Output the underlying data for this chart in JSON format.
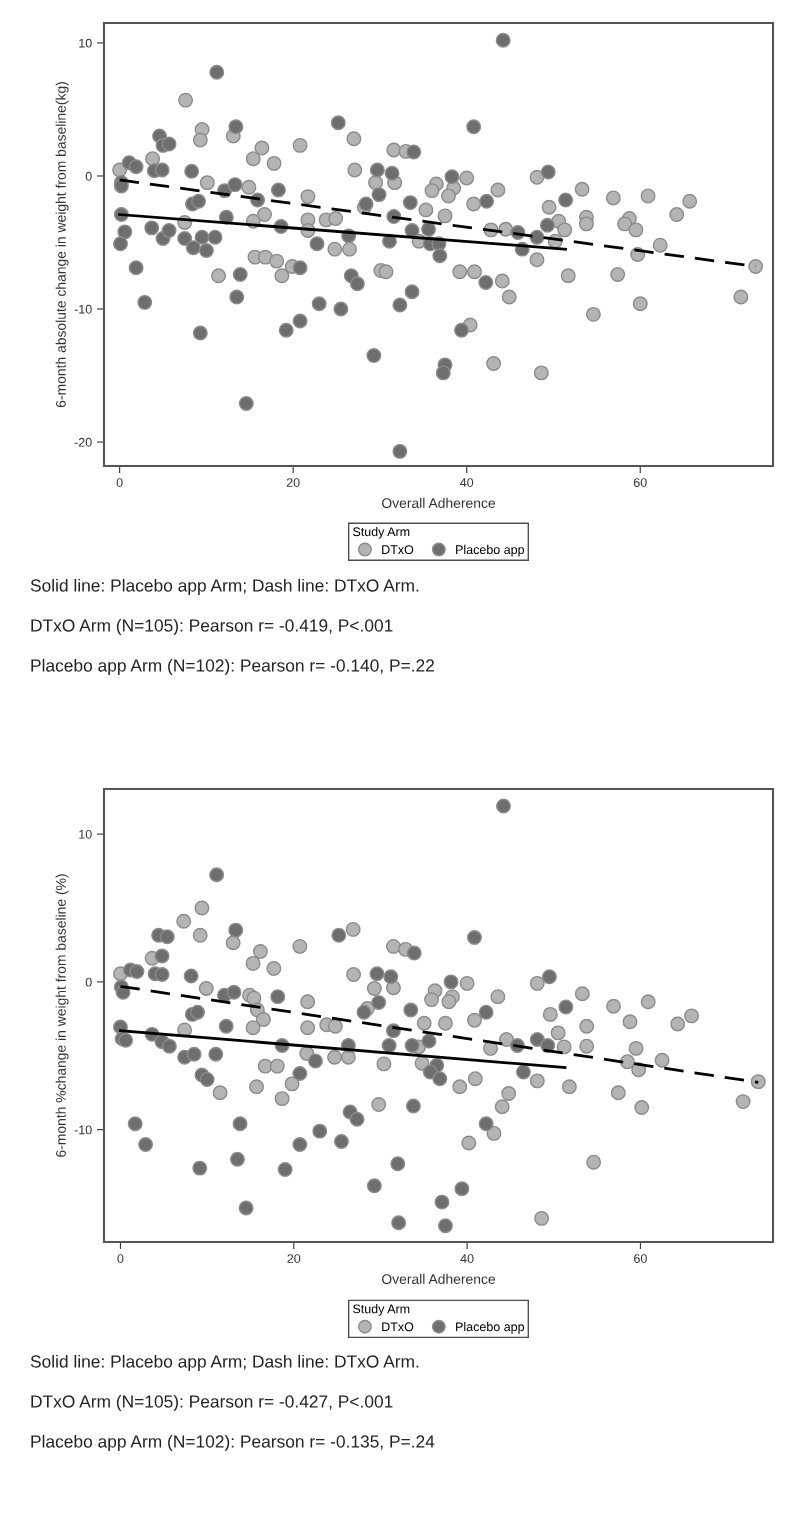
{
  "chart_data": [
    {
      "type": "scatter",
      "xlabel": "Overall Adherence",
      "ylabel": "6-month absolute change in weight from baseline(kg)",
      "legend_title": "Study Arm",
      "legend": "bottom",
      "grid": false,
      "xlim": [
        -1.8,
        75.3
      ],
      "xticks": [
        0,
        20,
        40,
        60
      ],
      "ylim": [
        -21.8,
        11.5
      ],
      "yticks": [
        -20,
        -10,
        0,
        10
      ],
      "series": [
        {
          "name": "DTxO",
          "marker": "circle",
          "color": "#b4b4b4",
          "x": [
            0,
            3.8,
            7.6,
            7.5,
            9.5,
            9.3,
            10.1,
            11.4,
            13.1,
            14.9,
            15.4,
            16.4,
            15.4,
            16.7,
            15.6,
            16.8,
            18.1,
            18.7,
            17.8,
            19.9,
            20.8,
            21.7,
            21.7,
            21.7,
            23.8,
            24.9,
            24.8,
            26.5,
            27.0,
            27.1,
            28.2,
            29.5,
            30.1,
            30.7,
            31.7,
            31.6,
            33.0,
            40.0,
            36.5,
            36.0,
            38.5,
            37.9,
            43.6,
            35.3,
            37.5,
            40.8,
            48.1,
            49.5,
            53.3,
            53.8,
            53.8,
            56.9,
            60.9,
            65.7,
            64.2,
            58.75,
            58.2,
            59.5,
            34.5,
            42.8,
            44.5,
            50.6,
            51.3,
            50.2,
            48.1,
            59.7,
            62.3,
            73.3,
            71.6,
            60.0,
            54.6,
            51.7,
            57.4,
            39.2,
            40.9,
            44.1,
            44.9,
            40.4,
            43.1,
            48.6
          ],
          "values": [
            0.45,
            1.3,
            5.7,
            -3.5,
            3.5,
            2.7,
            -0.5,
            -7.5,
            3.0,
            -0.85,
            1.3,
            2.1,
            -3.4,
            -2.9,
            -6.1,
            -6.1,
            -6.4,
            -7.5,
            0.95,
            -6.8,
            2.3,
            -1.55,
            -3.3,
            -4.1,
            -3.3,
            -3.2,
            -5.5,
            -5.5,
            2.8,
            0.45,
            -2.35,
            -0.5,
            -7.1,
            -7.2,
            -0.5,
            1.95,
            1.85,
            -0.15,
            -0.6,
            -1.1,
            -0.9,
            -1.5,
            -1.05,
            -2.55,
            -3.0,
            -2.1,
            -0.1,
            -2.35,
            -1.0,
            -3.1,
            -3.6,
            -1.65,
            -1.5,
            -1.9,
            -2.9,
            -3.2,
            -3.6,
            -4.05,
            -4.9,
            -4.05,
            -4.0,
            -3.4,
            -4.05,
            -4.9,
            -6.3,
            -5.9,
            -5.2,
            -6.8,
            -9.1,
            -9.6,
            -10.4,
            -7.5,
            -7.4,
            -7.2,
            -7.2,
            -7.9,
            -9.1,
            -11.2,
            -14.1,
            -14.8
          ]
        },
        {
          "name": "Placebo app",
          "marker": "circle",
          "color": "#6e6e6e",
          "x": [
            0.2,
            0.2,
            0.2,
            0.6,
            0.1,
            1.1,
            1.9,
            1.9,
            2.9,
            4.6,
            5.0,
            5.7,
            4.0,
            4.9,
            3.7,
            5.0,
            5.7,
            7.5,
            8.3,
            8.4,
            9.1,
            8.5,
            9.5,
            10.0,
            11.0,
            9.3,
            11.2,
            12.1,
            12.3,
            13.4,
            13.3,
            13.5,
            13.9,
            14.6,
            15.9,
            18.3,
            18.6,
            20.8,
            19.2,
            20.8,
            22.75,
            23.0,
            25.2,
            25.5,
            26.4,
            26.7,
            27.4,
            28.4,
            29.7,
            29.9,
            29.3,
            31.4,
            31.6,
            31.1,
            33.9,
            32.3,
            32.3,
            33.5,
            33.7,
            33.7,
            44.2,
            40.8,
            38.3,
            42.3,
            49.4,
            51.4,
            35.6,
            35.8,
            36.8,
            36.9,
            45.9,
            49.3,
            48.1,
            46.4,
            42.2,
            39.4,
            37.5,
            37.3
          ],
          "values": [
            -0.5,
            -0.75,
            -2.9,
            -4.2,
            -5.1,
            1.0,
            0.7,
            -6.9,
            -9.5,
            3.0,
            2.3,
            2.4,
            0.4,
            0.45,
            -3.9,
            -4.7,
            -4.1,
            -4.7,
            0.35,
            -2.1,
            -1.9,
            -5.4,
            -4.6,
            -5.6,
            -4.6,
            -11.8,
            7.8,
            -1.1,
            -3.1,
            3.7,
            -0.65,
            -9.1,
            -7.4,
            -17.1,
            -1.8,
            -1.05,
            -3.8,
            -6.9,
            -11.6,
            -10.9,
            -5.1,
            -9.6,
            4.0,
            -10.0,
            -4.5,
            -7.5,
            -8.1,
            -2.1,
            0.45,
            -1.4,
            -13.5,
            0.2,
            -3.05,
            -4.9,
            1.8,
            -9.7,
            -20.7,
            -2.0,
            -4.1,
            -8.7,
            10.2,
            3.7,
            -0.05,
            -1.9,
            0.3,
            -1.8,
            -4.0,
            -5.1,
            -5.1,
            -6.0,
            -4.25,
            -3.7,
            -4.6,
            -5.5,
            -8.0,
            -11.6,
            -14.2,
            -14.8
          ]
        },
        {
          "type": "line",
          "line_style": "dashed",
          "color": "#000000",
          "x": [
            0,
            73.3
          ],
          "values": [
            -0.3,
            -6.8
          ]
        },
        {
          "type": "line",
          "line_style": "solid",
          "color": "#000000",
          "x": [
            0,
            51.4
          ],
          "values": [
            -2.9,
            -5.5
          ]
        }
      ],
      "annotations": [
        "Solid line: Placebo app Arm; Dash line: DTxO Arm.",
        "DTxO Arm (N=105): Pearson r= -0.419, P<.001",
        "Placebo app Arm (N=102): Pearson r= -0.140, P=.22"
      ]
    },
    {
      "type": "scatter",
      "xlabel": "Overall Adherence",
      "ylabel": "6-month %change in weight from baseline (%)",
      "legend_title": "Study Arm",
      "legend": "bottom",
      "grid": false,
      "xlim": [
        -1.9,
        75.3
      ],
      "xticks": [
        0,
        20,
        40,
        60
      ],
      "ylim": [
        -17.6,
        13.05
      ],
      "yticks": [
        -10,
        0,
        10
      ],
      "series": [
        {
          "name": "DTxO",
          "marker": "circle",
          "color": "#b4b4b4",
          "x": [
            0,
            3.65,
            7.3,
            7.4,
            9.4,
            9.2,
            9.9,
            11.5,
            13.0,
            14.9,
            15.4,
            15.3,
            16.15,
            15.8,
            16.5,
            15.3,
            16.7,
            18.1,
            15.7,
            17.7,
            18.65,
            19.8,
            20.7,
            21.6,
            21.6,
            21.5,
            23.8,
            24.8,
            24.7,
            26.3,
            26.85,
            26.9,
            28.5,
            29.3,
            29.8,
            30.4,
            31.5,
            31.5,
            32.9,
            34.4,
            40.0,
            36.3,
            35.9,
            38.3,
            37.9,
            43.55,
            35.05,
            37.5,
            40.85,
            48.1,
            49.6,
            53.3,
            53.8,
            53.8,
            56.9,
            60.9,
            65.9,
            64.3,
            58.8,
            59.5,
            58.5,
            59.8,
            62.5,
            73.6,
            71.85,
            60.15,
            57.45,
            51.8,
            54.6,
            34.8,
            39.15,
            40.95,
            42.7,
            44.55,
            50.5,
            51.2,
            48.1,
            44.8,
            44.05,
            43.1,
            40.2,
            48.6
          ],
          "values": [
            0.55,
            1.6,
            4.1,
            -3.25,
            5.0,
            3.15,
            -0.45,
            -7.5,
            2.65,
            -0.9,
            -1.1,
            1.25,
            2.05,
            -1.9,
            -2.55,
            -3.1,
            -5.7,
            -5.7,
            -7.1,
            0.9,
            -7.9,
            -6.9,
            2.4,
            -1.35,
            -3.1,
            -4.85,
            -2.9,
            -3.0,
            -5.1,
            -5.1,
            3.55,
            0.5,
            -1.8,
            -0.45,
            -8.3,
            -5.55,
            -0.4,
            2.4,
            2.2,
            -4.4,
            -0.1,
            -0.6,
            -1.2,
            -1.0,
            -1.35,
            -1.0,
            -2.8,
            -2.8,
            -2.6,
            -0.1,
            -2.2,
            -0.8,
            -3.0,
            -4.35,
            -1.65,
            -1.35,
            -2.3,
            -2.85,
            -2.7,
            -4.5,
            -5.4,
            -5.95,
            -5.3,
            -6.75,
            -8.1,
            -8.5,
            -7.5,
            -7.1,
            -12.2,
            -5.5,
            -7.1,
            -6.55,
            -4.5,
            -3.9,
            -3.45,
            -4.4,
            -6.7,
            -7.55,
            -8.45,
            -10.25,
            -10.9,
            -16.0
          ]
        },
        {
          "name": "Placebo app",
          "marker": "circle",
          "color": "#6e6e6e",
          "x": [
            0.1,
            0.3,
            0,
            0.2,
            0.6,
            1.15,
            1.9,
            1.7,
            2.9,
            4.8,
            4.4,
            5.4,
            4.0,
            4.8,
            3.65,
            4.8,
            5.65,
            7.4,
            8.5,
            8.15,
            8.3,
            8.9,
            9.4,
            10.0,
            9.15,
            11.1,
            11.0,
            12.0,
            12.2,
            13.3,
            13.1,
            13.8,
            13.5,
            14.5,
            18.15,
            18.65,
            20.7,
            19.0,
            20.7,
            22.5,
            23.0,
            25.2,
            25.5,
            26.3,
            26.5,
            27.3,
            28.1,
            29.3,
            29.6,
            29.8,
            31.2,
            31.5,
            31.0,
            32.0,
            32.1,
            33.9,
            33.5,
            33.65,
            33.8,
            44.2,
            40.85,
            38.15,
            42.2,
            49.5,
            51.4,
            35.6,
            36.5,
            35.75,
            36.85,
            45.8,
            48.1,
            49.3,
            46.5,
            42.2,
            39.4,
            37.1,
            37.5
          ],
          "values": [
            -0.35,
            -0.7,
            -3.05,
            -3.85,
            -3.95,
            0.8,
            0.7,
            -9.6,
            -11.0,
            1.75,
            3.15,
            3.05,
            0.55,
            0.5,
            -3.55,
            -4.05,
            -4.35,
            -5.1,
            -4.9,
            0.4,
            -2.2,
            -2.05,
            -6.3,
            -6.6,
            -12.6,
            7.25,
            -4.9,
            -0.9,
            -3.0,
            3.5,
            -0.7,
            -9.6,
            -12.0,
            -15.3,
            -1.0,
            -4.3,
            -6.2,
            -12.7,
            -11.0,
            -5.35,
            -10.1,
            3.15,
            -10.8,
            -4.3,
            -8.8,
            -9.3,
            -2.05,
            -13.8,
            0.55,
            -1.4,
            0.35,
            -3.3,
            -4.3,
            -12.3,
            -16.3,
            1.95,
            -1.9,
            -4.3,
            -8.4,
            11.9,
            3.0,
            0.0,
            -2.05,
            0.35,
            -1.7,
            -4.0,
            -5.65,
            -6.1,
            -6.55,
            -4.3,
            -3.9,
            -4.3,
            -6.1,
            -9.6,
            -14.0,
            -14.9,
            -16.5
          ]
        },
        {
          "type": "line",
          "line_style": "dashed",
          "color": "#000000",
          "x": [
            0,
            73.6
          ],
          "values": [
            -0.3,
            -6.8
          ]
        },
        {
          "type": "line",
          "line_style": "solid",
          "color": "#000000",
          "x": [
            0,
            51.3
          ],
          "values": [
            -3.3,
            -5.8
          ]
        }
      ],
      "annotations": [
        "Solid line: Placebo app Arm; Dash line: DTxO Arm.",
        "DTxO Arm (N=105): Pearson r= -0.427, P<.001",
        "Placebo app Arm (N=102): Pearson r= -0.135, P=.24"
      ]
    }
  ]
}
